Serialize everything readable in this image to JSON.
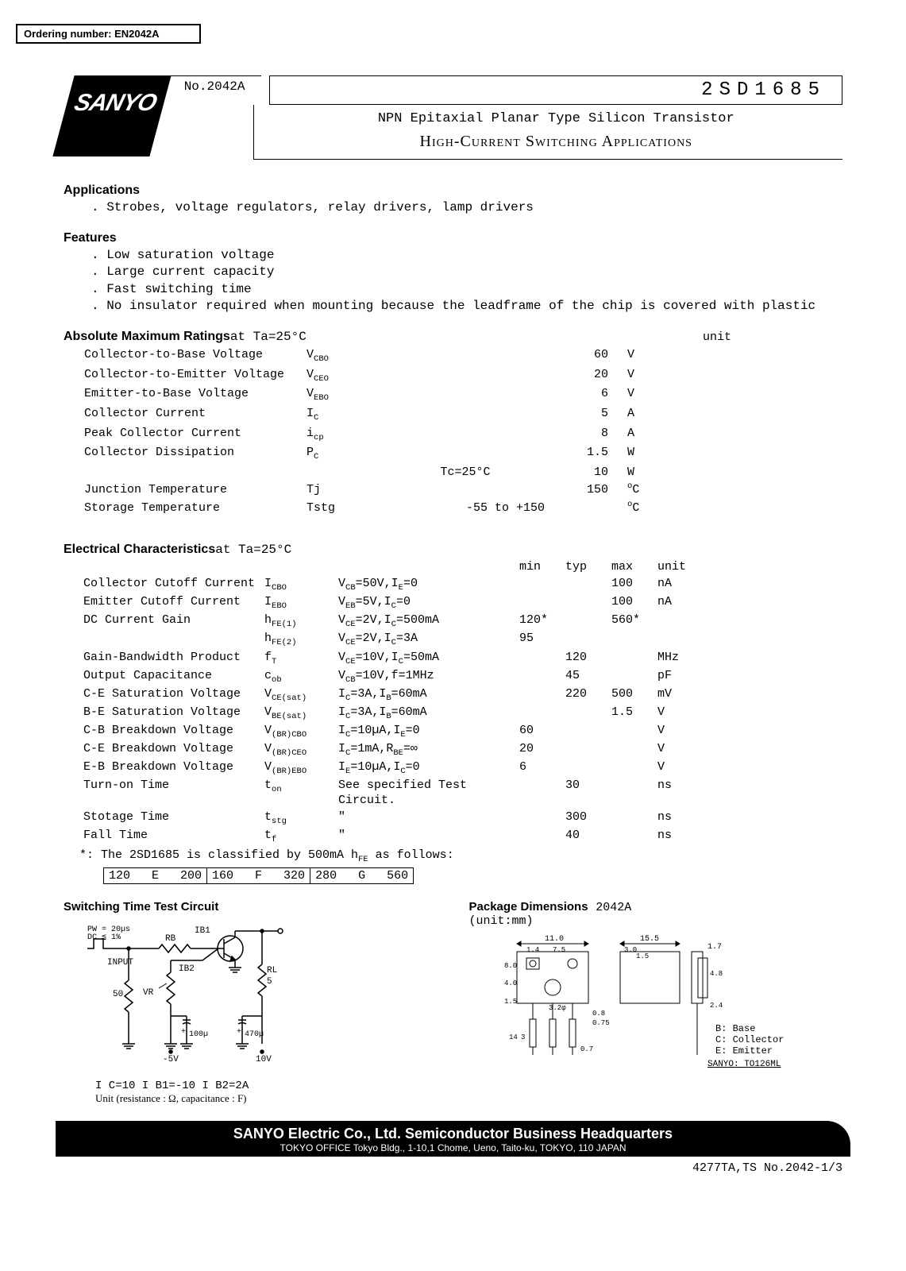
{
  "ordering_number_label": "Ordering number: EN2042A",
  "logo_text": "SANYO",
  "doc_number": "No.2042A",
  "part_number": "2SD1685",
  "subtitle1": "NPN Epitaxial Planar Type Silicon Transistor",
  "subtitle2": "High-Current Switching Applications",
  "applications": {
    "title": "Applications",
    "items": [
      "Strobes, voltage regulators, relay drivers, lamp drivers"
    ]
  },
  "features": {
    "title": "Features",
    "items": [
      "Low saturation voltage",
      "Large current capacity",
      "Fast switching time",
      "No insulator required when mounting because the leadframe of the chip is covered with plastic"
    ]
  },
  "abs_max": {
    "title": "Absolute Maximum Ratings",
    "condition_suffix": " at Ta=25°C",
    "unit_header": "unit",
    "rows": [
      {
        "param": "Collector-to-Base Voltage",
        "sym": "V",
        "sub": "CBO",
        "cond": "",
        "val": "60",
        "unit": "V"
      },
      {
        "param": "Collector-to-Emitter Voltage",
        "sym": "V",
        "sub": "CEO",
        "cond": "",
        "val": "20",
        "unit": "V"
      },
      {
        "param": "Emitter-to-Base Voltage",
        "sym": "V",
        "sub": "EBO",
        "cond": "",
        "val": "6",
        "unit": "V"
      },
      {
        "param": "Collector Current",
        "sym": "I",
        "sub": "C",
        "cond": "",
        "val": "5",
        "unit": "A"
      },
      {
        "param": "Peak Collector Current",
        "sym": "i",
        "sub": "cp",
        "cond": "",
        "val": "8",
        "unit": "A"
      },
      {
        "param": "Collector Dissipation",
        "sym": "P",
        "sub": "C",
        "cond": "",
        "val": "1.5",
        "unit": "W"
      },
      {
        "param": "",
        "sym": "",
        "sub": "",
        "cond": "Tc=25°C",
        "val": "10",
        "unit": "W"
      },
      {
        "param": "Junction Temperature",
        "sym": "Tj",
        "sub": "",
        "cond": "",
        "val": "150",
        "unit": "°C"
      },
      {
        "param": "Storage Temperature",
        "sym": "Tstg",
        "sub": "",
        "cond": "-55 to +150",
        "val": "",
        "unit": "°C"
      }
    ]
  },
  "elec_char": {
    "title": "Electrical Characteristics",
    "condition_suffix": " at Ta=25°C",
    "headers": {
      "min": "min",
      "typ": "typ",
      "max": "max",
      "unit": "unit"
    },
    "rows": [
      {
        "param": "Collector Cutoff Current",
        "sym": "I",
        "sub": "CBO",
        "cond": "V_CB=50V,I_E=0",
        "min": "",
        "typ": "",
        "max": "100",
        "unit": "nA"
      },
      {
        "param": "Emitter Cutoff Current",
        "sym": "I",
        "sub": "EBO",
        "cond": "V_EB=5V,I_C=0",
        "min": "",
        "typ": "",
        "max": "100",
        "unit": "nA"
      },
      {
        "param": "DC Current Gain",
        "sym": "h",
        "sub": "FE(1)",
        "cond": "V_CE=2V,I_C=500mA",
        "min": "120*",
        "typ": "",
        "max": "560*",
        "unit": ""
      },
      {
        "param": "",
        "sym": "h",
        "sub": "FE(2)",
        "cond": "V_CE=2V,I_C=3A",
        "min": "95",
        "typ": "",
        "max": "",
        "unit": ""
      },
      {
        "param": "Gain-Bandwidth Product",
        "sym": "f",
        "sub": "T",
        "cond": "V_CE=10V,I_C=50mA",
        "min": "",
        "typ": "120",
        "max": "",
        "unit": "MHz"
      },
      {
        "param": "Output Capacitance",
        "sym": "c",
        "sub": "ob",
        "cond": "V_CB=10V,f=1MHz",
        "min": "",
        "typ": "45",
        "max": "",
        "unit": "pF"
      },
      {
        "param": "C-E Saturation Voltage",
        "sym": "V",
        "sub": "CE(sat)",
        "cond": "I_C=3A,I_B=60mA",
        "min": "",
        "typ": "220",
        "max": "500",
        "unit": "mV"
      },
      {
        "param": "B-E Saturation Voltage",
        "sym": "V",
        "sub": "BE(sat)",
        "cond": "I_C=3A,I_B=60mA",
        "min": "",
        "typ": "",
        "max": "1.5",
        "unit": "V"
      },
      {
        "param": "C-B Breakdown Voltage",
        "sym": "V",
        "sub": "(BR)CBO",
        "cond": "I_C=10µA,I_E=0",
        "min": "60",
        "typ": "",
        "max": "",
        "unit": "V"
      },
      {
        "param": "C-E Breakdown Voltage",
        "sym": "V",
        "sub": "(BR)CEO",
        "cond": "I_C=1mA,R_BE=∞",
        "min": "20",
        "typ": "",
        "max": "",
        "unit": "V"
      },
      {
        "param": "E-B Breakdown Voltage",
        "sym": "V",
        "sub": "(BR)EBO",
        "cond": "I_E=10µA,I_C=0",
        "min": "6",
        "typ": "",
        "max": "",
        "unit": "V"
      },
      {
        "param": "Turn-on Time",
        "sym": "t",
        "sub": "on",
        "cond": "See specified Test Circuit.",
        "min": "",
        "typ": "30",
        "max": "",
        "unit": "ns"
      },
      {
        "param": "Stotage Time",
        "sym": "t",
        "sub": "stg",
        "cond": "\"",
        "min": "",
        "typ": "300",
        "max": "",
        "unit": "ns"
      },
      {
        "param": "Fall Time",
        "sym": "t",
        "sub": "f",
        "cond": "\"",
        "min": "",
        "typ": "40",
        "max": "",
        "unit": "ns"
      }
    ],
    "note": "*: The 2SD1685 is classified by 500mA h_FE as follows:"
  },
  "classification": [
    "120   E   200",
    "160   F   320",
    "280   G   560"
  ],
  "switching_test": {
    "title": "Switching Time Test Circuit",
    "labels": {
      "pw": "PW = 20µs",
      "dc": "DC ≦ 1%",
      "ib1": "IB1",
      "rb": "RB",
      "ib2": "IB2",
      "input": "INPUT",
      "vr": "VR",
      "r50": "50",
      "r5": "RL 5",
      "c1": "100µ",
      "c2": "470µ",
      "v1": "-5V",
      "v2": "10V",
      "cond": "I C=10 I B1=-10 I B2=2A",
      "unit_note": "Unit (resistance : Ω, capacitance : F)"
    }
  },
  "package": {
    "title": "Package Dimensions",
    "code": "2042A",
    "unit_label": "(unit:mm)",
    "dims": {
      "w": "11.0",
      "w2": "15.5",
      "t": "1.7",
      "p": "7.5",
      "p2": "3.0",
      "p3": "1.5",
      "p4": "1.4",
      "h1": "8.0",
      "h2": "4.0",
      "h3": "1.5",
      "hole": "3.2φ",
      "lead": "0.8",
      "lead2": "0.75",
      "tail": "14",
      "off": "0.7",
      "h4": "2.4",
      "h5": "4.8",
      "s": "3"
    },
    "pins": {
      "b": "B: Base",
      "c": "C: Collector",
      "e": "E: Emitter"
    },
    "pkg_code": "SANYO: TO126ML"
  },
  "footer": {
    "line1": "SANYO Electric Co., Ltd. Semiconductor Business Headquarters",
    "line2": "TOKYO OFFICE Tokyo Bldg., 1-10,1 Chome, Ueno, Taito-ku, TOKYO, 110 JAPAN"
  },
  "page_code": "4277TA,TS No.2042-1/3"
}
